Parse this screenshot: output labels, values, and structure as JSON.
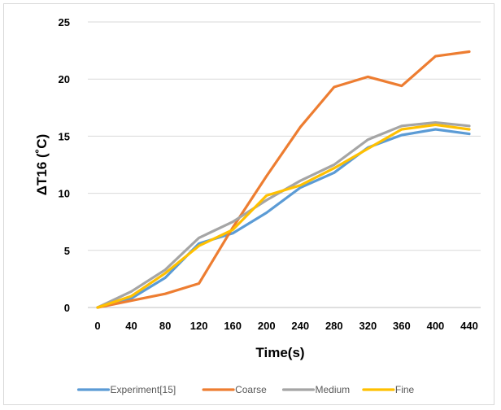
{
  "chart_data": {
    "type": "line",
    "xlabel": "Time(s)",
    "ylabel": "ΔT16 (˚C)",
    "x": [
      0,
      40,
      80,
      120,
      160,
      200,
      240,
      280,
      320,
      360,
      400,
      440
    ],
    "x_tick_labels": [
      "0",
      "40",
      "80",
      "120",
      "160",
      "200",
      "240",
      "280",
      "320",
      "360",
      "400",
      "440"
    ],
    "ylim": [
      0,
      25
    ],
    "y_ticks": [
      0,
      5,
      10,
      15,
      20,
      25
    ],
    "y_tick_labels": [
      "0",
      "5",
      "10",
      "15",
      "20",
      "25"
    ],
    "grid": "horizontal",
    "legend_position": "bottom",
    "series": [
      {
        "name": "Experiment[15]",
        "color": "#5b9bd5",
        "values": [
          0,
          0.8,
          2.6,
          5.6,
          6.5,
          8.3,
          10.5,
          11.8,
          14.0,
          15.1,
          15.6,
          15.2
        ]
      },
      {
        "name": "Coarse",
        "color": "#ed7d31",
        "values": [
          0,
          0.6,
          1.2,
          2.1,
          7.0,
          11.5,
          15.8,
          19.3,
          20.2,
          19.4,
          22.0,
          22.4
        ]
      },
      {
        "name": "Medium",
        "color": "#a5a5a5",
        "values": [
          0,
          1.4,
          3.3,
          6.1,
          7.5,
          9.4,
          11.1,
          12.5,
          14.7,
          15.9,
          16.2,
          15.9
        ]
      },
      {
        "name": "Fine",
        "color": "#ffc000",
        "values": [
          0,
          1.0,
          3.0,
          5.4,
          6.8,
          9.8,
          10.7,
          12.2,
          13.9,
          15.6,
          16.0,
          15.6
        ]
      }
    ]
  }
}
